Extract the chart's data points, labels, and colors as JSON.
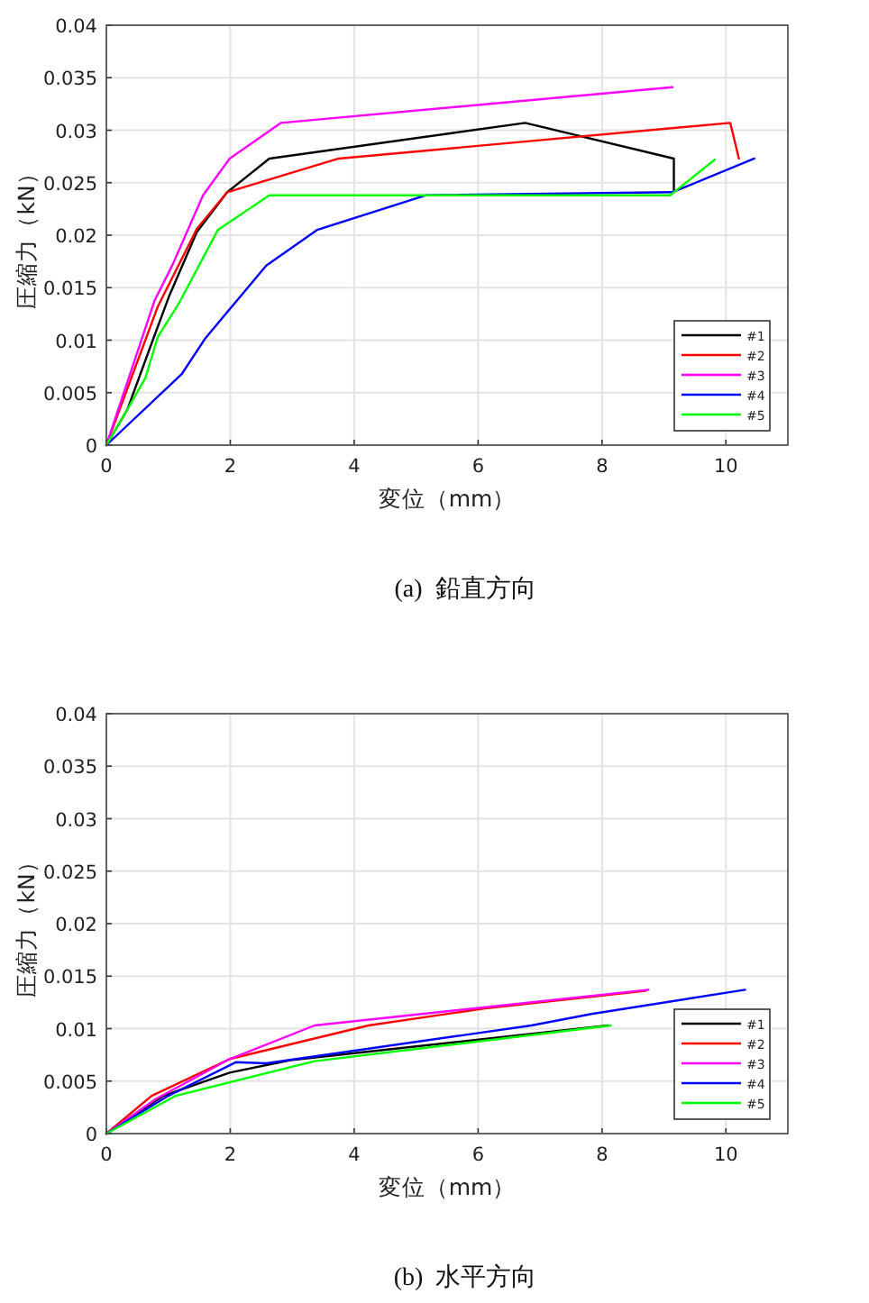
{
  "chart_data": [
    {
      "type": "line",
      "xlabel": "変位（mm）",
      "ylabel": "圧縮力（kN）",
      "xlim": [
        0,
        11
      ],
      "ylim": [
        0,
        0.04
      ],
      "xticks": [
        0,
        2,
        4,
        6,
        8,
        10
      ],
      "yticks": [
        0,
        0.005,
        0.01,
        0.015,
        0.02,
        0.025,
        0.03,
        0.035,
        0.04
      ],
      "grid": true,
      "legend": "bottom right",
      "annotations": [
        "(a)  鉛直方向"
      ],
      "series": [
        {
          "name": "#1",
          "color": "#000000",
          "x": [
            0,
            0.34,
            0.73,
            1.02,
            1.46,
            1.95,
            2.63,
            6.76,
            9.16,
            9.16
          ],
          "values": [
            0,
            0.0034,
            0.0097,
            0.0143,
            0.0203,
            0.0241,
            0.0273,
            0.0307,
            0.0273,
            0.0241
          ]
        },
        {
          "name": "#2",
          "color": "#ff0000",
          "x": [
            0,
            0.83,
            1.46,
            1.95,
            3.75,
            10.07,
            10.21
          ],
          "values": [
            0,
            0.0132,
            0.0206,
            0.0241,
            0.0273,
            0.0307,
            0.0273
          ]
        },
        {
          "name": "#3",
          "color": "#ff00ff",
          "x": [
            0,
            0.78,
            1.07,
            1.56,
            1.99,
            2.82,
            9.14
          ],
          "values": [
            0,
            0.0138,
            0.0172,
            0.0238,
            0.0273,
            0.0307,
            0.0341
          ]
        },
        {
          "name": "#4",
          "color": "#0000ff",
          "x": [
            0,
            1.22,
            1.6,
            2.58,
            3.4,
            5.16,
            9.14,
            10.46
          ],
          "values": [
            0,
            0.0068,
            0.0102,
            0.0171,
            0.0205,
            0.0238,
            0.0241,
            0.0273
          ]
        },
        {
          "name": "#5",
          "color": "#00ff00",
          "x": [
            0,
            0.34,
            0.63,
            0.83,
            1.17,
            1.8,
            2.63,
            9.1,
            9.82
          ],
          "values": [
            0,
            0.0034,
            0.0064,
            0.0103,
            0.0135,
            0.0205,
            0.0238,
            0.0238,
            0.0272
          ]
        }
      ]
    },
    {
      "type": "line",
      "xlabel": "変位（mm）",
      "ylabel": "圧縮力（kN）",
      "xlim": [
        0,
        11
      ],
      "ylim": [
        0,
        0.04
      ],
      "xticks": [
        0,
        2,
        4,
        6,
        8,
        10
      ],
      "yticks": [
        0,
        0.005,
        0.01,
        0.015,
        0.02,
        0.025,
        0.03,
        0.035,
        0.04
      ],
      "grid": true,
      "legend": "bottom right",
      "annotations": [
        "(b)  水平方向"
      ],
      "series": [
        {
          "name": "#1",
          "color": "#000000",
          "x": [
            0,
            0.92,
            1.99,
            2.97,
            5.0,
            8.1
          ],
          "values": [
            0,
            0.0036,
            0.0058,
            0.007,
            0.0083,
            0.0103
          ]
        },
        {
          "name": "#2",
          "color": "#ff0000",
          "x": [
            0,
            0.73,
            1.99,
            4.23,
            6.08,
            8.7
          ],
          "values": [
            0,
            0.0036,
            0.0071,
            0.0103,
            0.0119,
            0.0136
          ]
        },
        {
          "name": "#3",
          "color": "#ff00ff",
          "x": [
            0,
            0.8,
            1.99,
            3.36,
            8.75
          ],
          "values": [
            0,
            0.0033,
            0.0071,
            0.0103,
            0.0137
          ]
        },
        {
          "name": "#4",
          "color": "#0000ff",
          "x": [
            0,
            1.0,
            2.09,
            2.58,
            6.86,
            7.83,
            10.31
          ],
          "values": [
            0,
            0.0036,
            0.0068,
            0.0067,
            0.0103,
            0.0114,
            0.0137
          ]
        },
        {
          "name": "#5",
          "color": "#00ff00",
          "x": [
            0,
            1.12,
            3.36,
            8.14
          ],
          "values": [
            0,
            0.0036,
            0.0069,
            0.0103
          ]
        }
      ]
    }
  ]
}
